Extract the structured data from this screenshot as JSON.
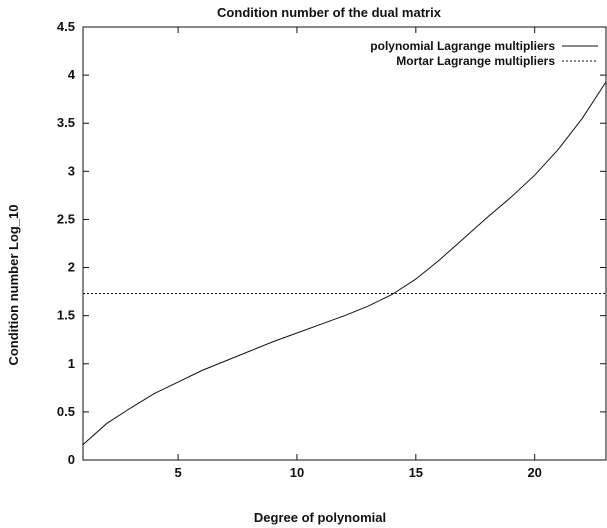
{
  "chart_data": {
    "type": "line",
    "title": "Condition number of the dual matrix",
    "xlabel": "Degree of polynomial",
    "ylabel": "Condition number Log_10",
    "xlim": [
      1,
      23
    ],
    "ylim": [
      0,
      4.5
    ],
    "x_ticks": [
      5,
      10,
      15,
      20
    ],
    "y_ticks": [
      0,
      0.5,
      1,
      1.5,
      2,
      2.5,
      3,
      3.5,
      4,
      4.5
    ],
    "x_tick_labels": [
      "5",
      "10",
      "15",
      "20"
    ],
    "y_tick_labels": [
      "0",
      "0.5",
      "1",
      "1.5",
      "2",
      "2.5",
      "3",
      "3.5",
      "4",
      "4.5"
    ],
    "legend_position": "top-right",
    "grid": false,
    "series": [
      {
        "name": "polynomial Lagrange multipliers",
        "style": "solid",
        "color": "#111111",
        "x": [
          1,
          2,
          3,
          4,
          5,
          6,
          7,
          8,
          9,
          10,
          11,
          12,
          13,
          14,
          15,
          16,
          17,
          18,
          19,
          20,
          21,
          22,
          23
        ],
        "y": [
          0.16,
          0.38,
          0.54,
          0.69,
          0.81,
          0.93,
          1.03,
          1.13,
          1.23,
          1.32,
          1.41,
          1.5,
          1.6,
          1.72,
          1.88,
          2.08,
          2.3,
          2.52,
          2.73,
          2.96,
          3.23,
          3.55,
          3.93
        ]
      },
      {
        "name": "Mortar Lagrange multipliers",
        "style": "dotted",
        "color": "#111111",
        "x": [
          1,
          23
        ],
        "y": [
          1.73,
          1.73
        ]
      }
    ]
  }
}
